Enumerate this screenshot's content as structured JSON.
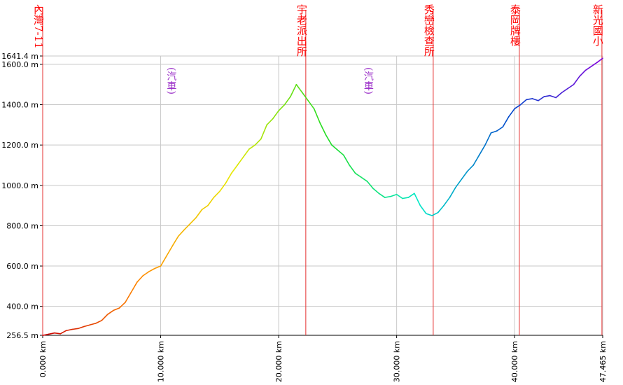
{
  "chart_data": {
    "type": "line",
    "xlabel": "",
    "ylabel": "",
    "xlim": [
      0,
      47.465
    ],
    "ylim": [
      256.5,
      1641.4
    ],
    "y_ticks": [
      {
        "value": 256.5,
        "label": "256.5 m"
      },
      {
        "value": 400,
        "label": "400.0 m"
      },
      {
        "value": 600,
        "label": "600.0 m"
      },
      {
        "value": 800,
        "label": "800.0 m"
      },
      {
        "value": 1000,
        "label": "1000.0 m"
      },
      {
        "value": 1200,
        "label": "1200.0 m"
      },
      {
        "value": 1400,
        "label": "1400.0 m"
      },
      {
        "value": 1600,
        "label": "1600.0 m"
      },
      {
        "value": 1641.4,
        "label": "1641.4 m"
      }
    ],
    "x_ticks": [
      {
        "value": 0,
        "label": "0.000 km"
      },
      {
        "value": 10,
        "label": "10.000 km"
      },
      {
        "value": 20,
        "label": "20.000 km"
      },
      {
        "value": 30,
        "label": "30.000 km"
      },
      {
        "value": 40,
        "label": "40.000 km"
      },
      {
        "value": 47.465,
        "label": "47.465 km"
      }
    ],
    "grid": true,
    "line_colors": [
      "#cc0000",
      "#ff8800",
      "#e8e800",
      "#22dd22",
      "#00e8c8",
      "#0044cc",
      "#8800dd"
    ],
    "markers": [
      {
        "x": 0,
        "label": "內灣7-11"
      },
      {
        "x": 22.3,
        "label": "宇老派出所"
      },
      {
        "x": 33.1,
        "label": "秀巒檢查所"
      },
      {
        "x": 40.4,
        "label": "泰岡牌樓"
      },
      {
        "x": 47.4,
        "label": "新光國小"
      }
    ],
    "annotations": [
      {
        "x": 11.0,
        "label": "(汽車)"
      },
      {
        "x": 27.7,
        "label": "(汽車)"
      }
    ],
    "series": [
      {
        "name": "",
        "x": [
          0,
          0.5,
          1,
          1.5,
          2,
          2.5,
          3,
          3.5,
          4,
          4.5,
          5,
          5.5,
          6,
          6.5,
          7,
          7.5,
          8,
          8.5,
          9,
          9.5,
          10,
          10.5,
          11,
          11.5,
          12,
          12.5,
          13,
          13.5,
          14,
          14.5,
          15,
          15.5,
          16,
          16.5,
          17,
          17.5,
          18,
          18.5,
          19,
          19.5,
          20,
          20.5,
          21,
          21.5,
          22,
          22.5,
          23,
          23.5,
          24,
          24.5,
          25,
          25.5,
          26,
          26.5,
          27,
          27.5,
          28,
          28.5,
          29,
          29.5,
          30,
          30.5,
          31,
          31.5,
          32,
          32.5,
          33,
          33.5,
          34,
          34.5,
          35,
          35.5,
          36,
          36.5,
          37,
          37.5,
          38,
          38.5,
          39,
          39.5,
          40,
          40.5,
          41,
          41.5,
          42,
          42.5,
          43,
          43.5,
          44,
          44.5,
          45,
          45.5,
          46,
          46.5,
          47,
          47.465
        ],
        "y": [
          256,
          262,
          268,
          264,
          280,
          286,
          290,
          300,
          308,
          316,
          330,
          360,
          380,
          392,
          420,
          470,
          520,
          552,
          572,
          588,
          600,
          650,
          700,
          748,
          780,
          810,
          840,
          880,
          900,
          940,
          970,
          1010,
          1060,
          1100,
          1140,
          1180,
          1200,
          1230,
          1300,
          1330,
          1370,
          1400,
          1440,
          1500,
          1460,
          1420,
          1380,
          1310,
          1250,
          1200,
          1175,
          1150,
          1100,
          1060,
          1040,
          1020,
          985,
          960,
          940,
          945,
          955,
          935,
          940,
          960,
          900,
          860,
          850,
          865,
          900,
          940,
          990,
          1030,
          1070,
          1100,
          1150,
          1200,
          1260,
          1270,
          1290,
          1340,
          1380,
          1400,
          1425,
          1430,
          1420,
          1440,
          1445,
          1435,
          1460,
          1480,
          1500,
          1540,
          1570,
          1590,
          1610,
          1630
        ]
      }
    ]
  }
}
